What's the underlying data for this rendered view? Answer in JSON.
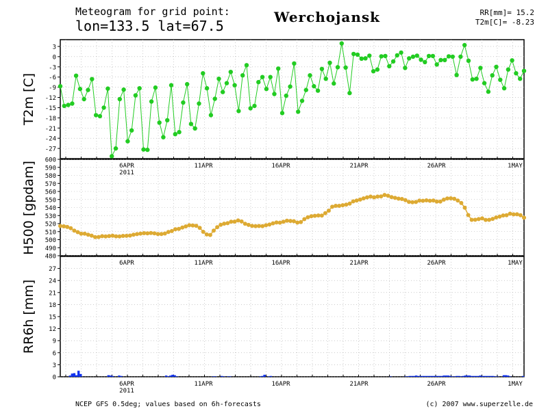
{
  "header": {
    "title_line1": "Meteogram for grid point:",
    "title_line2": "lon=133.5  lat=67.5",
    "location": "Werchojansk",
    "summary_line1": "RR[mm]= 15.2",
    "summary_line2": "T2m[C]= -8.23"
  },
  "footer": {
    "source": "NCEP GFS 0.5deg; values based on 6h-forecasts",
    "credit": "(c) 2007 www.superzelle.de"
  },
  "colors": {
    "t2m": "#22cc22",
    "h500": "#ddaa33",
    "rr6h": "#1133ee",
    "grid": "#aaaaaa",
    "axis": "#000000"
  },
  "chart_data": [
    {
      "type": "line",
      "ylabel": "T2m [C]",
      "ylim": [
        -30,
        5
      ],
      "yticks": [
        "3",
        "0",
        "-3",
        "-6",
        "-9",
        "-12",
        "-15",
        "-18",
        "-21",
        "-24",
        "-27"
      ],
      "xlabels": [
        "6APR",
        "11APR",
        "16APR",
        "21APR",
        "26APR",
        "1MAY"
      ],
      "xsublabel": "2011",
      "grid": true,
      "series": [
        {
          "values": [
            -8.7,
            -14.5,
            -14.2,
            -13.8,
            -5.6,
            -9.5,
            -12.5,
            -9.8,
            -6.6,
            -17.2,
            -17.5,
            -15.0,
            -9.4,
            -29.3,
            -27.0,
            -12.5,
            -9.7,
            -24.9,
            -21.7,
            -11.4,
            -9.3,
            -27.3,
            -27.4,
            -13.2,
            -9.1,
            -19.4,
            -23.7,
            -18.7,
            -8.4,
            -22.8,
            -22.2,
            -13.5,
            -8.1,
            -19.8,
            -21.1,
            -13.8,
            -4.9,
            -9.3,
            -17.2,
            -12.4,
            -6.5,
            -10.4,
            -7.8,
            -4.5,
            -8.4,
            -16.0,
            -5.5,
            -2.5,
            -15.2,
            -14.5,
            -7.5,
            -6.0,
            -9.5,
            -6.0,
            -11.0,
            -3.5,
            -16.6,
            -11.5,
            -8.8,
            -2.0,
            -16.2,
            -13.0,
            -9.8,
            -5.5,
            -8.7,
            -10.0,
            -3.6,
            -6.5,
            -1.8,
            -7.9,
            -3.1,
            3.9,
            -3.2,
            -10.7,
            0.8,
            0.6,
            -0.6,
            -0.5,
            0.3,
            -4.3,
            -3.8,
            0.1,
            0.2,
            -2.8,
            -1.4,
            0.4,
            1.2,
            -3.3,
            -0.5,
            0.0,
            0.3,
            -0.9,
            -1.6,
            0.2,
            0.2,
            -2.3,
            -1.0,
            -1.0,
            0.1,
            0.0,
            -5.4,
            0.0,
            3.4,
            -1.2,
            -6.7,
            -6.5,
            -3.3,
            -7.8,
            -10.3,
            -5.5,
            -3.0,
            -6.8,
            -9.3,
            -3.8,
            -1.1,
            -4.9,
            -6.5,
            -4.2
          ]
        }
      ]
    },
    {
      "type": "line",
      "ylabel": "H500 [gpdam]",
      "ylim": [
        480,
        600
      ],
      "yticks": [
        "600",
        "590",
        "580",
        "570",
        "560",
        "550",
        "540",
        "530",
        "520",
        "510",
        "500",
        "490",
        "480"
      ],
      "xlabels": [
        "6APR",
        "11APR",
        "16APR",
        "21APR",
        "26APR",
        "1MAY"
      ],
      "grid": true,
      "series": [
        {
          "values": [
            517.0,
            516.6,
            515.8,
            514.2,
            511.3,
            509.4,
            507.4,
            507.5,
            506.1,
            505.0,
            503.2,
            503.3,
            504.3,
            504.1,
            504.4,
            504.9,
            504.2,
            504.1,
            504.7,
            504.8,
            505.1,
            506.1,
            506.9,
            507.6,
            508.1,
            507.9,
            508.3,
            507.9,
            507.1,
            507.1,
            507.7,
            509.5,
            510.7,
            513.0,
            513.4,
            515.1,
            516.5,
            518.0,
            517.6,
            517.2,
            514.6,
            509.8,
            506.5,
            505.9,
            511.2,
            515.5,
            518.5,
            519.9,
            520.5,
            522.4,
            522.5,
            523.9,
            522.6,
            519.8,
            518.4,
            517.1,
            516.8,
            517.0,
            516.8,
            518.0,
            518.8,
            520.3,
            521.4,
            521.2,
            522.4,
            523.6,
            523.3,
            523.0,
            521.3,
            521.9,
            525.5,
            527.8,
            529.1,
            529.7,
            530.1,
            530.0,
            533.0,
            536.1,
            540.9,
            542.1,
            542.1,
            542.9,
            543.6,
            544.9,
            547.7,
            548.7,
            549.9,
            551.4,
            552.7,
            553.6,
            552.7,
            553.6,
            553.9,
            555.7,
            554.7,
            553.0,
            552.0,
            551.1,
            550.6,
            549.2,
            547.1,
            546.6,
            546.9,
            548.6,
            548.4,
            548.9,
            548.4,
            548.7,
            547.5,
            547.4,
            549.8,
            551.3,
            551.5,
            550.8,
            548.8,
            545.6,
            539.8,
            530.6,
            524.7,
            524.8,
            525.6,
            526.5,
            524.6,
            524.7,
            525.9,
            527.7,
            528.7,
            530.1,
            530.5,
            532.3,
            531.5,
            531.6,
            530.5,
            527.3
          ]
        }
      ]
    },
    {
      "type": "bar",
      "ylabel": "RR6h [mm]",
      "ylim": [
        0,
        30
      ],
      "yticks": [
        "27",
        "24",
        "21",
        "18",
        "15",
        "12",
        "9",
        "6",
        "3",
        "0"
      ],
      "xlabels": [
        "6APR",
        "11APR",
        "16APR",
        "21APR",
        "26APR",
        "1MAY"
      ],
      "xsublabel": "2011",
      "grid": true,
      "series": [
        {
          "values": [
            0,
            0,
            0,
            0,
            0.3,
            0.8,
            0.9,
            0.4,
            1.5,
            0.7,
            0,
            0,
            0,
            0,
            0,
            0,
            0,
            0,
            0,
            0,
            0,
            0,
            0.4,
            0.3,
            0.2,
            0,
            0,
            0.3,
            0.2,
            0,
            0,
            0,
            0,
            0,
            0,
            0,
            0,
            0,
            0,
            0,
            0,
            0,
            0,
            0,
            0,
            0,
            0,
            0,
            0,
            0.3,
            0.1,
            0.3,
            0.5,
            0.4,
            0.1,
            0,
            0,
            0,
            0,
            0,
            0,
            0,
            0,
            0,
            0,
            0,
            0,
            0,
            0,
            0,
            0,
            0.1,
            0.1,
            0,
            0,
            0.2,
            0.1,
            0,
            0.1,
            0.1,
            0,
            0,
            0,
            0,
            0,
            0,
            0,
            0,
            0,
            0,
            0,
            0,
            0,
            0.1,
            0.2,
            0.5,
            0,
            0.1,
            0.2,
            0,
            0,
            0,
            0,
            0,
            0,
            0,
            0,
            0,
            0,
            0,
            0,
            0,
            0,
            0,
            0,
            0,
            0,
            0,
            0,
            0,
            0,
            0,
            0,
            0,
            0,
            0,
            0,
            0,
            0,
            0,
            0,
            0,
            0,
            0,
            0,
            0,
            0,
            0,
            0,
            0,
            0,
            0,
            0,
            0,
            0,
            0,
            0,
            0,
            0,
            0,
            0,
            0,
            0,
            0,
            0.1,
            0,
            0,
            0,
            0,
            0,
            0,
            0.1,
            0.1,
            0.2,
            0.2,
            0.2,
            0.3,
            0.2,
            0.2,
            0.2,
            0.2,
            0.2,
            0.2,
            0.2,
            0.2,
            0.2,
            0.2,
            0.2,
            0.2,
            0.3,
            0.3,
            0.3,
            0.2,
            0.1,
            0.1,
            0.2,
            0.2,
            0.1,
            0.2,
            0.3,
            0.3,
            0.3,
            0.2,
            0.2,
            0.2,
            0.2,
            0.3,
            0.2,
            0.2,
            0.2,
            0.2,
            0.2,
            0.2,
            0.1,
            0.1,
            0,
            0,
            0.4,
            0.4,
            0.3,
            0.1,
            0,
            0,
            0,
            0,
            0,
            0.2
          ]
        }
      ]
    }
  ]
}
